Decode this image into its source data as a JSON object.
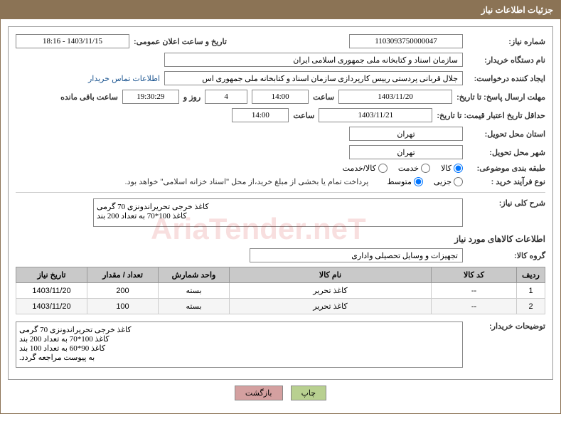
{
  "header": {
    "title": "جزئیات اطلاعات نیاز"
  },
  "fields": {
    "need_number_label": "شماره نیاز:",
    "need_number": "1103093750000047",
    "announce_date_label": "تاریخ و ساعت اعلان عمومی:",
    "announce_date": "1403/11/15 - 18:16",
    "buyer_org_label": "نام دستگاه خریدار:",
    "buyer_org": "سازمان اسناد و کتابخانه ملی جمهوری اسلامی ایران",
    "requester_label": "ایجاد کننده درخواست:",
    "requester": "جلال قربانی پردستی رییس کارپردازی سازمان اسناد و کتابخانه ملی جمهوری اس",
    "contact_link": "اطلاعات تماس خریدار",
    "deadline_label": "مهلت ارسال پاسخ: تا تاریخ:",
    "deadline_date": "1403/11/20",
    "time_label": "ساعت",
    "deadline_time": "14:00",
    "days_remaining": "4",
    "days_label": "روز و",
    "time_remaining": "19:30:29",
    "remaining_label": "ساعت باقی مانده",
    "validity_label": "حداقل تاریخ اعتبار قیمت: تا تاریخ:",
    "validity_date": "1403/11/21",
    "validity_time": "14:00",
    "province_label": "استان محل تحویل:",
    "province": "تهران",
    "city_label": "شهر محل تحویل:",
    "city": "تهران",
    "category_label": "طبقه بندی موضوعی:",
    "category_options": {
      "goods": "کالا",
      "service": "خدمت",
      "both": "کالا/خدمت"
    },
    "process_label": "نوع فرآیند خرید :",
    "process_options": {
      "partial": "جزیی",
      "medium": "متوسط"
    },
    "payment_note": "پرداخت تمام یا بخشی از مبلغ خرید،از محل \"اسناد خزانه اسلامی\" خواهد بود.",
    "description_label": "شرح کلی نیاز:",
    "description": "کاغذ خرجی تحریراندونزی 70 گرمی\nکاغذ 100*70 به تعداد 200 بند",
    "items_section_title": "اطلاعات کالاهای مورد نیاز",
    "goods_group_label": "گروه کالا:",
    "goods_group": "تجهیزات و وسایل تحصیلی واداری",
    "buyer_notes_label": "توضیحات خریدار:",
    "buyer_notes": "کاغذ خرجی تحریراندونزی 70 گرمی\nکاغذ 100*70 به تعداد 200 بند\nکاغذ 90*60 به تعداد 100 بند\nبه پیوست مراجعه گردد."
  },
  "table": {
    "headers": {
      "row": "ردیف",
      "code": "کد کالا",
      "name": "نام کالا",
      "unit": "واحد شمارش",
      "qty": "تعداد / مقدار",
      "date": "تاریخ نیاز"
    },
    "rows": [
      {
        "row": "1",
        "code": "--",
        "name": "کاغذ تحریر",
        "unit": "بسته",
        "qty": "200",
        "date": "1403/11/20"
      },
      {
        "row": "2",
        "code": "--",
        "name": "کاغذ تحریر",
        "unit": "بسته",
        "qty": "100",
        "date": "1403/11/20"
      }
    ]
  },
  "buttons": {
    "back": "بازگشت",
    "print": "چاپ"
  },
  "colors": {
    "header_bg": "#8b7355",
    "th_bg": "#c9c9c9",
    "btn_back": "#d4a0a0",
    "btn_print": "#b8d090"
  }
}
